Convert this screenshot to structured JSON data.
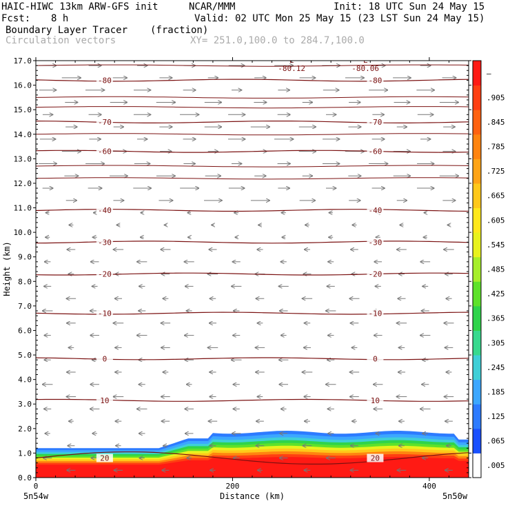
{
  "header": {
    "model": "HAIC-HIWC 13km ARW-GFS init",
    "org": "NCAR/MMM",
    "init": "Init: 18 UTC Sun 24 May 15",
    "fcst_label": "Fcst:",
    "fcst_value": "8 h",
    "valid": "Valid: 02 UTC Mon 25 May 15 (23 LST Sun 24 May 15)",
    "field1": "Boundary Layer Tracer",
    "field1_units": "(fraction)",
    "field2": "Circulation vectors",
    "xy": "XY= 251.0,100.0 to 284.7,100.0"
  },
  "chart_data": {
    "type": "heatmap",
    "xlabel": "Distance (km)",
    "ylabel": "Height (km)",
    "xlim": [
      0,
      440
    ],
    "ylim": [
      0.0,
      17.0
    ],
    "x_ticks": [
      0,
      200,
      400
    ],
    "y_ticks": [
      "0.0",
      "1.0",
      "2.0",
      "3.0",
      "4.0",
      "5.0",
      "6.0",
      "7.0",
      "8.0",
      "9.0",
      "10.0",
      "11.0",
      "12.0",
      "13.0",
      "14.0",
      "15.0",
      "16.0",
      "17.0"
    ],
    "x_endpoints": {
      "left": "5n54w",
      "right": "5n50w"
    },
    "colorbar": {
      "labels": [
        ".005",
        ".065",
        ".125",
        ".185",
        ".245",
        ".305",
        ".365",
        ".425",
        ".485",
        ".545",
        ".605",
        ".665",
        ".725",
        ".785",
        ".845",
        ".905",
        "–"
      ],
      "colors": [
        "#ffffff",
        "#1a50ff",
        "#2d7bff",
        "#3ca7ff",
        "#3fcfd7",
        "#38d98e",
        "#2fd44b",
        "#5ee22a",
        "#a6ee2a",
        "#e8f21e",
        "#ffe81c",
        "#ffc81a",
        "#ffa416",
        "#ff8410",
        "#ff6210",
        "#ff3f12",
        "#ff1a14"
      ]
    },
    "temperature_contours": [
      {
        "label": "20",
        "height": 0.8
      },
      {
        "label": "10",
        "height": 3.15
      },
      {
        "label": "0",
        "height": 4.85
      },
      {
        "label": "-10",
        "height": 6.7
      },
      {
        "label": "-20",
        "height": 8.3
      },
      {
        "label": "-30",
        "height": 9.6
      },
      {
        "label": "-40",
        "height": 10.9
      },
      {
        "label": "-60",
        "height": 13.3
      },
      {
        "label": "-70",
        "height": 14.5
      },
      {
        "label": "-80",
        "height": 16.2
      }
    ],
    "minima": [
      {
        "label": "L",
        "value": "-80.12",
        "x": 260
      },
      {
        "label": "L",
        "value": "-80.06",
        "x": 335
      }
    ]
  }
}
